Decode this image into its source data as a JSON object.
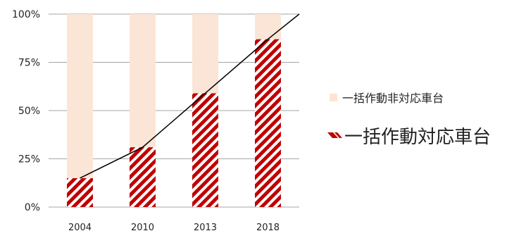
{
  "chart_data": {
    "type": "bar",
    "stacked": true,
    "percent": true,
    "categories": [
      "2004",
      "2010",
      "2013",
      "2018"
    ],
    "y_ticks": [
      "0%",
      "25%",
      "50%",
      "75%",
      "100%"
    ],
    "ylim": [
      0,
      100
    ],
    "series": [
      {
        "name": "一括作動対応車台",
        "values": [
          15,
          31,
          59,
          87
        ],
        "color": "#c00000",
        "pattern": "diagonal-stripes"
      },
      {
        "name": "一括作動非対応車台",
        "values": [
          85,
          69,
          41,
          13
        ],
        "color": "#fbe5d6",
        "pattern": "solid"
      }
    ],
    "trend_line": {
      "values": [
        15,
        31,
        59,
        87,
        100
      ],
      "color": "#000000"
    },
    "grid": true,
    "legend_position": "right"
  }
}
